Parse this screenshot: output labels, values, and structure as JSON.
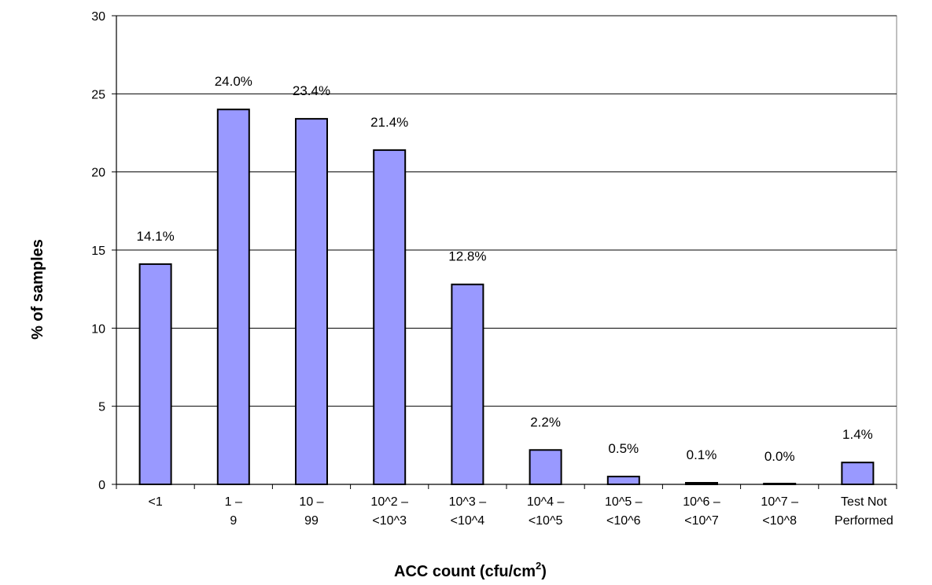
{
  "chart_data": {
    "type": "bar",
    "categories": [
      [
        "<1"
      ],
      [
        "1 –",
        "9"
      ],
      [
        "10 –",
        "99"
      ],
      [
        "10^2 –",
        "<10^3"
      ],
      [
        "10^3 –",
        "<10^4"
      ],
      [
        "10^4 –",
        "<10^5"
      ],
      [
        "10^5 –",
        "<10^6"
      ],
      [
        "10^6 –",
        "<10^7"
      ],
      [
        "10^7 –",
        "<10^8"
      ],
      [
        "Test Not",
        "Performed"
      ]
    ],
    "values": [
      14.1,
      24.0,
      23.4,
      21.4,
      12.8,
      2.2,
      0.5,
      0.1,
      0.0,
      1.4
    ],
    "data_labels": [
      "14.1%",
      "24.0%",
      "23.4%",
      "21.4%",
      "12.8%",
      "2.2%",
      "0.5%",
      "0.1%",
      "0.0%",
      "1.4%"
    ],
    "ylabel": "% of samples",
    "xlabel": "ACC count (cfu/cm",
    "xlabel_superscript": "2",
    "xlabel_suffix": ")",
    "ylim": [
      0,
      30
    ],
    "yticks": [
      0,
      5,
      10,
      15,
      20,
      25,
      30
    ],
    "grid": true,
    "legend": "none",
    "bar_color": "#9999ff",
    "bar_stroke": "#000000"
  }
}
